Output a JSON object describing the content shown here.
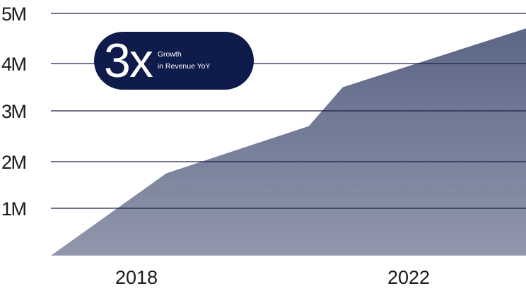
{
  "chart_data": {
    "type": "area",
    "title": "",
    "xlabel": "",
    "ylabel": "",
    "x_ticks": [
      "2018",
      "2022"
    ],
    "y_ticks": [
      {
        "label": "1M",
        "value": 1000000
      },
      {
        "label": "2M",
        "value": 2000000
      },
      {
        "label": "3M",
        "value": 3000000
      },
      {
        "label": "4M",
        "value": 4000000
      },
      {
        "label": "5M",
        "value": 5000000
      }
    ],
    "x": [
      2016.5,
      2018.2,
      2020.3,
      2020.8,
      2023.5
    ],
    "values": [
      0,
      1750000,
      2700000,
      3500000,
      4700000
    ],
    "xlim": [
      2016.5,
      2023.5
    ],
    "ylim": [
      0,
      5000000
    ],
    "grid": true,
    "legend": "none",
    "colors": {
      "area_top": "#5b6686",
      "area_bottom": "#9197ac",
      "grid": "#1a2247",
      "badge": "#0f1b4a"
    }
  },
  "badge": {
    "big": "3x",
    "line1": "Growth",
    "line2": "in Revenue YoY"
  }
}
